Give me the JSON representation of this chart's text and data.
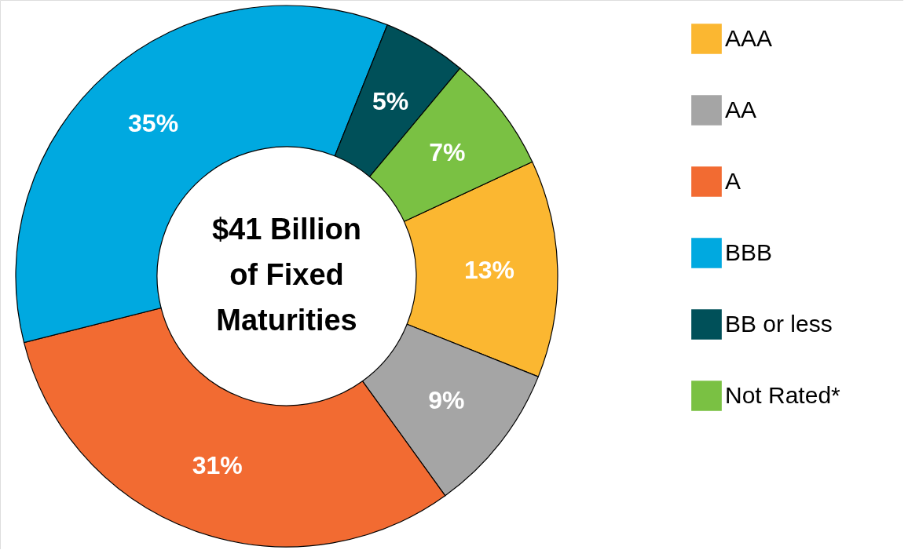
{
  "chart_data": {
    "type": "donut",
    "categories": [
      "AAA",
      "AA",
      "A",
      "BBB",
      "BB or less",
      "Not Rated*"
    ],
    "values": [
      13,
      9,
      31,
      35,
      5,
      7
    ],
    "colors": [
      "#fbb731",
      "#a5a5a5",
      "#f26b32",
      "#00a9e0",
      "#005059",
      "#7ac143"
    ],
    "value_labels": [
      "13%",
      "9%",
      "31%",
      "35%",
      "5%",
      "7%"
    ],
    "annotations": [
      "$41 Billion\nof Fixed\nMaturities"
    ],
    "legend": "right"
  }
}
